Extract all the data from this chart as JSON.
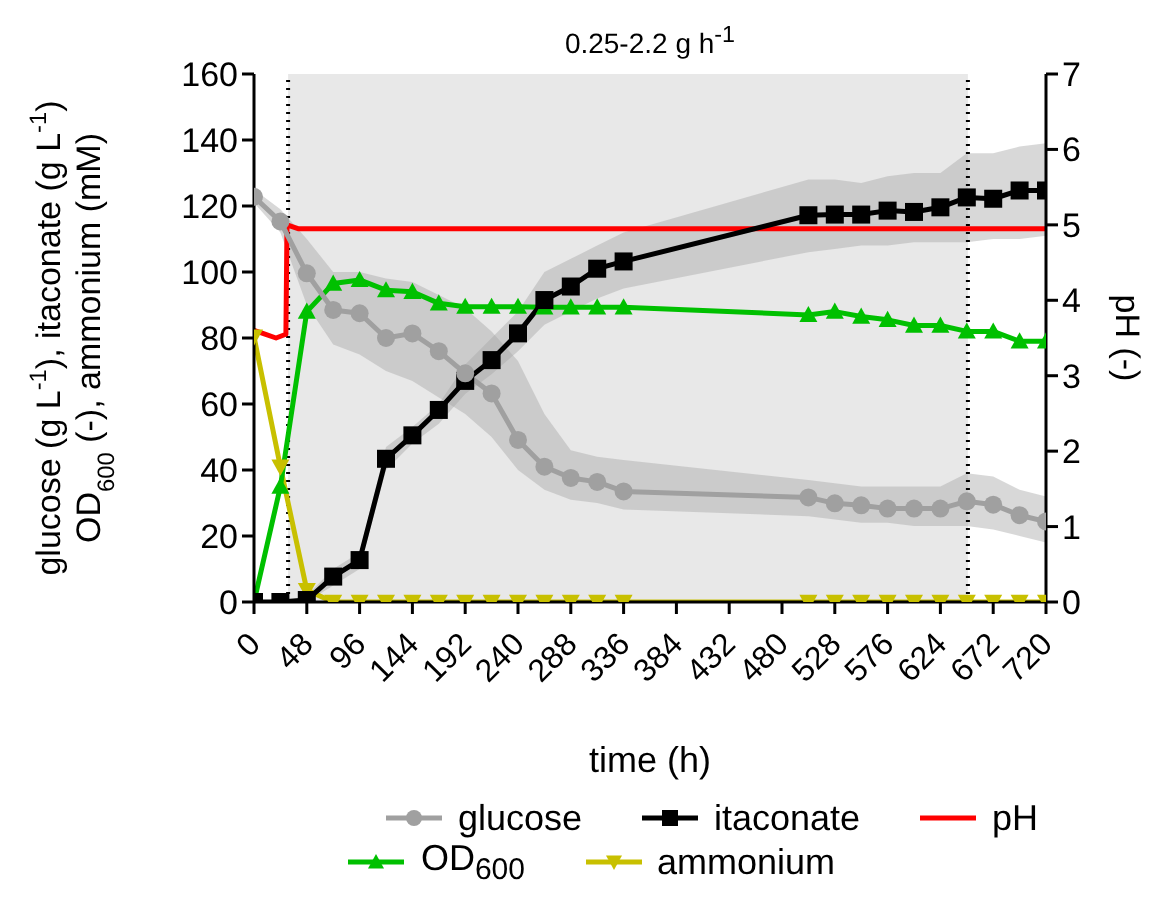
{
  "chart_data": {
    "type": "line",
    "title": "0.25-2.2 g h$^{-1}$",
    "xlabel": "time (h)",
    "ylabel": "glucose (g L$^{-1}$), itaconate (g L$^{-1}$)\nOD$_{600}$ (-), ammonium (mM)",
    "y2label": "pH (-)",
    "x": [
      0,
      24,
      48,
      72,
      96,
      120,
      144,
      168,
      192,
      216,
      240,
      264,
      288,
      312,
      336,
      504,
      528,
      552,
      576,
      600,
      624,
      648,
      672,
      696,
      720
    ],
    "series": [
      {
        "name": "glucose",
        "color": "#a0a0a0",
        "marker": "circle",
        "values": [
          122.8,
          115.3,
          99.6,
          88.5,
          87.5,
          80,
          81.4,
          76,
          69.3,
          63.2,
          49.1,
          41,
          37.6,
          36.4,
          33.5,
          31.7,
          29.9,
          29.3,
          28.3,
          28.3,
          28.3,
          30.5,
          29.5,
          26.3,
          24.4
        ],
        "lower": [
          121,
          112,
          90,
          78,
          75,
          70,
          67,
          62,
          57,
          50,
          40,
          34,
          31,
          30,
          28,
          26,
          25,
          24,
          24,
          23,
          23,
          23,
          22,
          20,
          18
        ],
        "upper": [
          125,
          119,
          110,
          100,
          100,
          98,
          97,
          93,
          89,
          82,
          73,
          57,
          46,
          44,
          43,
          37,
          36,
          35,
          35,
          35,
          35,
          39,
          38,
          34,
          32
        ]
      },
      {
        "name": "itaconate",
        "color": "#000000",
        "marker": "square",
        "values": [
          0,
          0,
          0.6,
          7.7,
          12.7,
          43.4,
          50.5,
          58.2,
          67,
          73.3,
          81.4,
          91.5,
          95.6,
          101,
          103.2,
          117.2,
          117.4,
          117.4,
          118.6,
          118.2,
          119.6,
          122.6,
          122.2,
          124.7,
          124.7
        ],
        "lower": [
          0,
          0,
          0,
          5,
          10,
          40,
          48,
          54,
          63,
          69,
          76,
          84,
          88,
          92,
          95,
          106,
          107,
          108,
          108,
          109,
          109,
          109,
          110,
          110,
          111
        ],
        "upper": [
          0,
          0,
          2,
          10,
          15,
          47,
          53,
          60,
          72,
          80,
          88,
          100,
          104,
          108,
          112,
          128,
          128,
          127,
          129,
          130,
          130,
          136,
          136,
          138,
          139
        ]
      },
      {
        "name": "pH",
        "color": "#ff0000",
        "marker": "none",
        "axis": "y2",
        "x": [
          0,
          10,
          20,
          29,
          30,
          40,
          100,
          200,
          400,
          600,
          720
        ],
        "values": [
          3.6,
          3.55,
          3.5,
          3.55,
          5,
          4.95,
          4.95,
          4.95,
          4.95,
          4.95,
          4.95
        ]
      },
      {
        "name": "OD$_{600}$",
        "color": "#00c000",
        "marker": "triangle",
        "values": [
          0,
          35,
          88,
          96.5,
          97.6,
          94.5,
          94,
          90.5,
          89.5,
          89.5,
          89.5,
          89.3,
          89.3,
          89.3,
          89.3,
          87,
          88,
          86.5,
          85.5,
          83.8,
          83.8,
          82,
          82,
          79,
          79
        ]
      },
      {
        "name": "ammonium",
        "color": "#c8c000",
        "marker": "triangle-down",
        "values": [
          80.4,
          41,
          3.6,
          0,
          0,
          0,
          0,
          0,
          0,
          0,
          0,
          0,
          0,
          0,
          0,
          0,
          0,
          0,
          0,
          0,
          0,
          0,
          0,
          0,
          0
        ]
      }
    ],
    "xlim": [
      0,
      720
    ],
    "xticks": [
      0,
      48,
      96,
      144,
      192,
      240,
      288,
      336,
      384,
      432,
      480,
      528,
      576,
      624,
      672,
      720
    ],
    "ylim": [
      0,
      160
    ],
    "yticks": [
      0,
      20,
      40,
      60,
      80,
      100,
      120,
      140,
      160
    ],
    "y2lim": [
      0,
      7
    ],
    "y2ticks": [
      0,
      1,
      2,
      3,
      4,
      5,
      6,
      7
    ],
    "bands": [
      {
        "axis": "x",
        "from": 31,
        "to": 649,
        "color": "#e8e8e8"
      }
    ],
    "ref_lines": [
      {
        "axis": "x",
        "value": 31,
        "color": "#000000",
        "line_style": "dotted"
      },
      {
        "axis": "x",
        "value": 649,
        "color": "#000000",
        "line_style": "dotted"
      }
    ],
    "grid": false,
    "legend": "bottom",
    "line_style": "solid"
  }
}
